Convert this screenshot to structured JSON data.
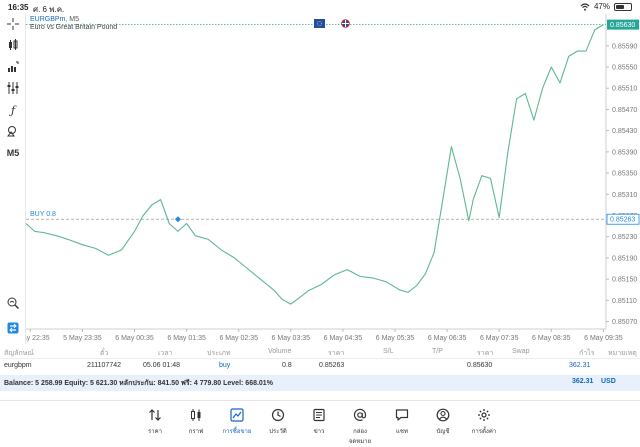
{
  "status": {
    "time": "16:35",
    "date": "ศ. 6 พ.ค.",
    "battery": "47%",
    "battery_level": 0.47
  },
  "chart": {
    "symbol": "EURGBPm",
    "timeframe": "M5",
    "description": "Euro vs Great Britain Pound",
    "current_price": "0.85630",
    "buy_line_label": "BUY 0.8",
    "buy_price_label": "0.85263",
    "left_toolbar_timeframe": "M5",
    "colors": {
      "line": "#5cb88e",
      "price_tag": "#26a69a",
      "buy_tag": "#1e88e5",
      "buy_text": "#1e88e5"
    },
    "y_ticks": [
      "0.85590",
      "0.85550",
      "0.85510",
      "0.85470",
      "0.85430",
      "0.85390",
      "0.85350",
      "0.85310",
      "0.85270",
      "0.85230",
      "0.85190",
      "0.85150",
      "0.85110",
      "0.85070"
    ],
    "x_ticks": [
      "5 May 22:35",
      "5 May 23:35",
      "6 May 00:35",
      "6 May 01:35",
      "6 May 02:35",
      "6 May 03:35",
      "6 May 04:35",
      "6 May 05:35",
      "6 May 06:35",
      "6 May 07:35",
      "6 May 08:35",
      "6 May 09:35"
    ]
  },
  "chart_data": {
    "type": "line",
    "title": "EURGBPm, M5",
    "subtitle": "Euro vs Great Britain Pound",
    "xlabel": "",
    "ylabel": "",
    "ylim": [
      0.8505,
      0.8563
    ],
    "grid": false,
    "x_range": [
      "5 May 22:30",
      "6 May 09:38"
    ],
    "series": [
      {
        "name": "EURGBPm",
        "x": [
          "5 May 22:30",
          "5 May 22:40",
          "5 May 22:50",
          "5 May 23:05",
          "5 May 23:20",
          "5 May 23:35",
          "5 May 23:50",
          "6 May 00:05",
          "6 May 00:20",
          "6 May 00:35",
          "6 May 00:45",
          "6 May 00:55",
          "6 May 01:05",
          "6 May 01:15",
          "6 May 01:25",
          "6 May 01:35",
          "6 May 01:45",
          "6 May 02:00",
          "6 May 02:15",
          "6 May 02:30",
          "6 May 02:45",
          "6 May 03:00",
          "6 May 03:15",
          "6 May 03:25",
          "6 May 03:35",
          "6 May 03:45",
          "6 May 03:55",
          "6 May 04:10",
          "6 May 04:25",
          "6 May 04:40",
          "6 May 04:55",
          "6 May 05:10",
          "6 May 05:25",
          "6 May 05:40",
          "6 May 05:50",
          "6 May 06:00",
          "6 May 06:10",
          "6 May 06:20",
          "6 May 06:30",
          "6 May 06:40",
          "6 May 06:50",
          "6 May 07:00",
          "6 May 07:05",
          "6 May 07:15",
          "6 May 07:25",
          "6 May 07:35",
          "6 May 07:45",
          "6 May 07:55",
          "6 May 08:05",
          "6 May 08:15",
          "6 May 08:25",
          "6 May 08:35",
          "6 May 08:45",
          "6 May 08:55",
          "6 May 09:05",
          "6 May 09:15",
          "6 May 09:25",
          "6 May 09:35"
        ],
        "values": [
          0.85255,
          0.8524,
          0.85238,
          0.85232,
          0.85224,
          0.85215,
          0.85208,
          0.85195,
          0.85205,
          0.8524,
          0.8527,
          0.8529,
          0.853,
          0.85255,
          0.8524,
          0.85255,
          0.85232,
          0.85225,
          0.85205,
          0.8519,
          0.8517,
          0.8515,
          0.8513,
          0.85112,
          0.85103,
          0.85115,
          0.85128,
          0.8514,
          0.85158,
          0.85168,
          0.85155,
          0.85152,
          0.85145,
          0.8513,
          0.85125,
          0.85138,
          0.8516,
          0.852,
          0.853,
          0.854,
          0.8534,
          0.8526,
          0.853,
          0.85345,
          0.8534,
          0.85266,
          0.8539,
          0.8549,
          0.855,
          0.8545,
          0.8551,
          0.8555,
          0.8552,
          0.8557,
          0.8558,
          0.8558,
          0.8562,
          0.8563
        ]
      }
    ],
    "annotations": [
      {
        "label": "BUY 0.8",
        "value": 0.85263,
        "x": "6 May 01:25"
      }
    ]
  },
  "positions": {
    "headers": [
      "สัญลักษณ์",
      "ตั๋ว",
      "เวลา",
      "ประเภท",
      "Volume",
      "ราคา",
      "S/L",
      "T/P",
      "ราคา",
      "Swap",
      "กำไร",
      "หมายเหตุ"
    ],
    "rows": [
      {
        "symbol": "eurgbpm",
        "ticket": "211107742",
        "time": "05.06 01:48",
        "type": "buy",
        "volume": "0.8",
        "open_price": "0.85263",
        "sl": "",
        "tp": "",
        "price": "0.85630",
        "swap": "",
        "profit": "362.31",
        "comment": ""
      }
    ],
    "balance_line": "Balance: 5 258.99 Equity: 5 621.30 หลักประกัน: 841.50 ฟรี: 4 779.80 Level: 668.01%",
    "total_profit": "362.31",
    "currency": "USD"
  },
  "tabs": [
    {
      "label": "ราคา",
      "icon": "quotes-icon"
    },
    {
      "label": "กราฟ",
      "icon": "candles-icon"
    },
    {
      "label": "การซื้อขาย",
      "icon": "trade-icon",
      "active": true
    },
    {
      "label": "ประวัติ",
      "icon": "history-icon"
    },
    {
      "label": "ข่าว",
      "icon": "news-icon"
    },
    {
      "label": "กล่องจดหมาย",
      "icon": "mail-icon"
    },
    {
      "label": "แชท",
      "icon": "chat-icon"
    },
    {
      "label": "บัญชี",
      "icon": "account-icon"
    },
    {
      "label": "การตั้งค่า",
      "icon": "settings-icon"
    }
  ]
}
